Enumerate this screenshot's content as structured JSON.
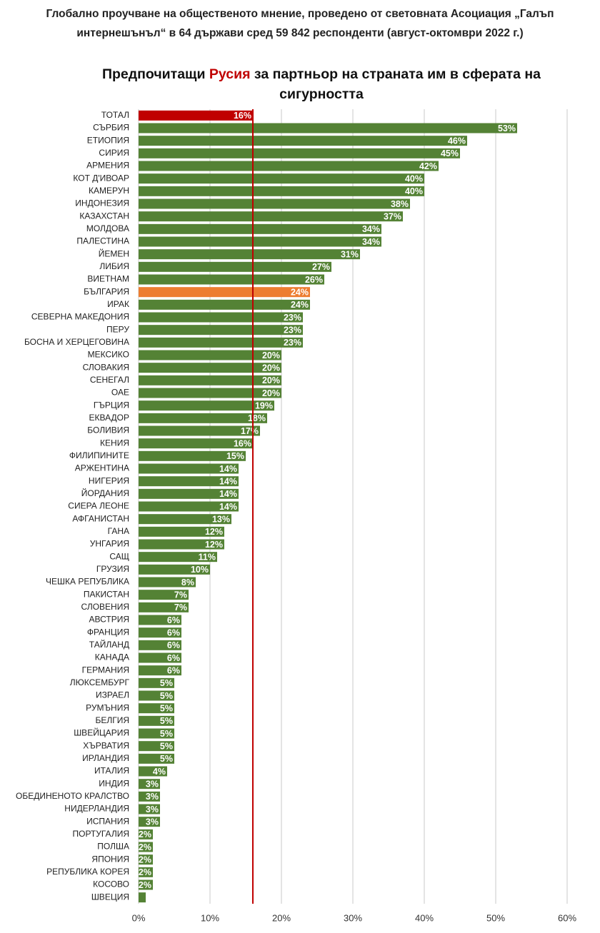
{
  "chart_data": {
    "type": "bar",
    "orientation": "horizontal",
    "header": "Глобално проучване на общественото мнение, проведено от световната Асоциация „Галъп интернешънъл“ в 64 държави сред 59 842 респонденти (август-октомври 2022 г.)",
    "title": [
      "Предпочитащи",
      "Русия",
      "за партньор на страната им в сферата на сигурността"
    ],
    "title_highlight_color": "#c00000",
    "categories": [
      "ТОТАЛ",
      "СЪРБИЯ",
      "ЕТИОПИЯ",
      "СИРИЯ",
      "АРМЕНИЯ",
      "КОТ Д'ИВОАР",
      "КАМЕРУН",
      "ИНДОНЕЗИЯ",
      "КАЗАХСТАН",
      "МОЛДОВА",
      "ПАЛЕСТИНА",
      "ЙЕМЕН",
      "ЛИБИЯ",
      "ВИЕТНАМ",
      "БЪЛГАРИЯ",
      "ИРАК",
      "СЕВЕРНА МАКЕДОНИЯ",
      "ПЕРУ",
      "БОСНА И ХЕРЦЕГОВИНА",
      "МЕКСИКО",
      "СЛОВАКИЯ",
      "СЕНЕГАЛ",
      "ОАЕ",
      "ГЪРЦИЯ",
      "ЕКВАДОР",
      "БОЛИВИЯ",
      "КЕНИЯ",
      "ФИЛИПИНИТЕ",
      "АРЖЕНТИНА",
      "НИГЕРИЯ",
      "ЙОРДАНИЯ",
      "СИЕРА ЛЕОНЕ",
      "АФГАНИСТАН",
      "ГАНА",
      "УНГАРИЯ",
      "САЩ",
      "ГРУЗИЯ",
      "ЧЕШКА РЕПУБЛИКА",
      "ПАКИСТАН",
      "СЛОВЕНИЯ",
      "АВСТРИЯ",
      "ФРАНЦИЯ",
      "ТАЙЛАНД",
      "КАНАДА",
      "ГЕРМАНИЯ",
      "ЛЮКСЕМБУРГ",
      "ИЗРАЕЛ",
      "РУМЪНИЯ",
      "БЕЛГИЯ",
      "ШВЕЙЦАРИЯ",
      "ХЪРВАТИЯ",
      "ИРЛАНДИЯ",
      "ИТАЛИЯ",
      "ИНДИЯ",
      "ОБЕДИНЕНОТО КРАЛСТВО",
      "НИДЕРЛАНДИЯ",
      "ИСПАНИЯ",
      "ПОРТУГАЛИЯ",
      "ПОЛША",
      "ЯПОНИЯ",
      "РЕПУБЛИКА КОРЕЯ",
      "КОСОВО",
      "ШВЕЦИЯ"
    ],
    "values": [
      16,
      53,
      46,
      45,
      42,
      40,
      40,
      38,
      37,
      34,
      34,
      31,
      27,
      26,
      24,
      24,
      23,
      23,
      23,
      20,
      20,
      20,
      20,
      19,
      18,
      17,
      16,
      15,
      14,
      14,
      14,
      14,
      13,
      12,
      12,
      11,
      10,
      8,
      7,
      7,
      6,
      6,
      6,
      6,
      6,
      5,
      5,
      5,
      5,
      5,
      5,
      5,
      4,
      3,
      3,
      3,
      3,
      2,
      2,
      2,
      2,
      2,
      1
    ],
    "value_labels": [
      "16%",
      "53%",
      "46%",
      "45%",
      "42%",
      "40%",
      "40%",
      "38%",
      "37%",
      "34%",
      "34%",
      "31%",
      "27%",
      "26%",
      "24%",
      "24%",
      "23%",
      "23%",
      "23%",
      "20%",
      "20%",
      "20%",
      "20%",
      "19%",
      "18%",
      "17%",
      "16%",
      "15%",
      "14%",
      "14%",
      "14%",
      "14%",
      "13%",
      "12%",
      "12%",
      "11%",
      "10%",
      "8%",
      "7%",
      "7%",
      "6%",
      "6%",
      "6%",
      "6%",
      "6%",
      "5%",
      "5%",
      "5%",
      "5%",
      "5%",
      "5%",
      "5%",
      "4%",
      "3%",
      "3%",
      "3%",
      "3%",
      "2%",
      "2%",
      "2%",
      "2%",
      "2%",
      null
    ],
    "colors": [
      "#c00000",
      "#548235",
      "#548235",
      "#548235",
      "#548235",
      "#548235",
      "#548235",
      "#548235",
      "#548235",
      "#548235",
      "#548235",
      "#548235",
      "#548235",
      "#548235",
      "#ed7d31",
      "#548235",
      "#548235",
      "#548235",
      "#548235",
      "#548235",
      "#548235",
      "#548235",
      "#548235",
      "#548235",
      "#548235",
      "#548235",
      "#548235",
      "#548235",
      "#548235",
      "#548235",
      "#548235",
      "#548235",
      "#548235",
      "#548235",
      "#548235",
      "#548235",
      "#548235",
      "#548235",
      "#548235",
      "#548235",
      "#548235",
      "#548235",
      "#548235",
      "#548235",
      "#548235",
      "#548235",
      "#548235",
      "#548235",
      "#548235",
      "#548235",
      "#548235",
      "#548235",
      "#548235",
      "#548235",
      "#548235",
      "#548235",
      "#548235",
      "#548235",
      "#548235",
      "#548235",
      "#548235",
      "#548235",
      "#548235"
    ],
    "reference_line_color": "#c00000",
    "xlim": [
      0,
      60
    ],
    "xticks": [
      {
        "value": 0,
        "label": "0%"
      },
      {
        "value": 10,
        "label": "10%"
      },
      {
        "value": 20,
        "label": "20%"
      },
      {
        "value": 30,
        "label": "30%"
      },
      {
        "value": 40,
        "label": "40%"
      },
      {
        "value": 50,
        "label": "50%"
      },
      {
        "value": 60,
        "label": "60%"
      }
    ],
    "grid": true
  }
}
